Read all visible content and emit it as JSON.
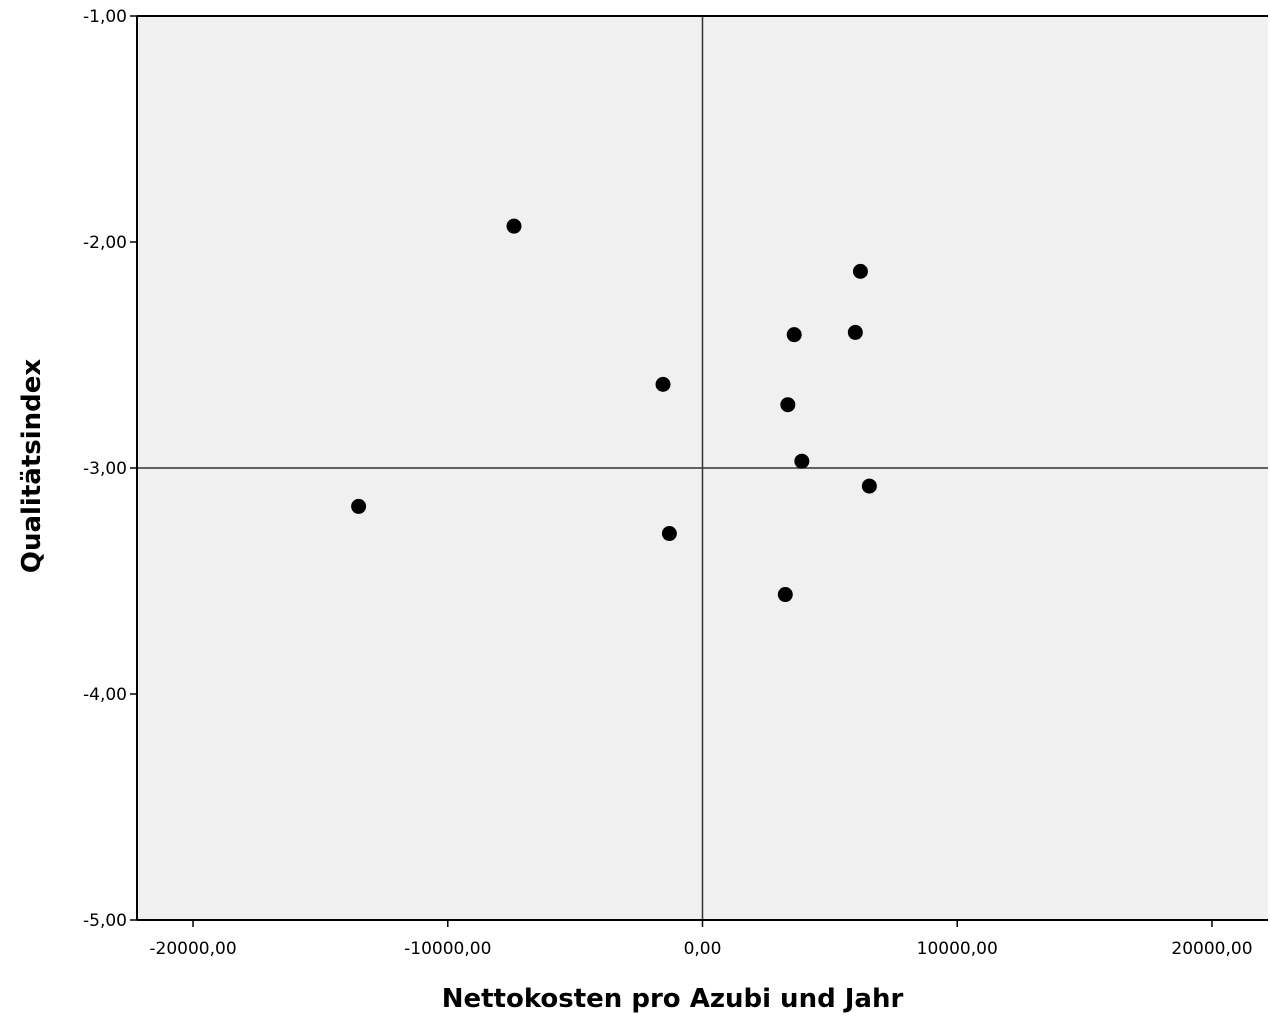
{
  "chart_data": {
    "type": "scatter",
    "title": "",
    "xlabel": "Nettokosten pro Azubi und Jahr",
    "ylabel": "Qualitätsindex",
    "xlim": [
      -22200,
      22200
    ],
    "ylim": [
      -5.0,
      -1.0
    ],
    "x_ticks": [
      {
        "value": -20000,
        "label": "-20000,00"
      },
      {
        "value": -10000,
        "label": "-10000,00"
      },
      {
        "value": 0,
        "label": "0,00"
      },
      {
        "value": 10000,
        "label": "10000,00"
      },
      {
        "value": 20000,
        "label": "20000,00"
      }
    ],
    "y_ticks": [
      {
        "value": -1,
        "label": "-1,00"
      },
      {
        "value": -2,
        "label": "-2,00"
      },
      {
        "value": -3,
        "label": "-3,00"
      },
      {
        "value": -4,
        "label": "-4,00"
      },
      {
        "value": -5,
        "label": "-5,00"
      }
    ],
    "reference_lines": {
      "x": 0,
      "y": -3.0
    },
    "grid": false,
    "legend": "none",
    "colors": {
      "plot_background": "#f0f0f0",
      "point": "#000000",
      "axis": "#000000"
    },
    "series": [
      {
        "points": [
          {
            "x": -7400,
            "y": -1.93
          },
          {
            "x": -13500,
            "y": -3.17
          },
          {
            "x": -1550,
            "y": -2.63
          },
          {
            "x": -1300,
            "y": -3.29
          },
          {
            "x": 6200,
            "y": -2.13
          },
          {
            "x": 3600,
            "y": -2.41
          },
          {
            "x": 6000,
            "y": -2.4
          },
          {
            "x": 3350,
            "y": -2.72
          },
          {
            "x": 3900,
            "y": -2.97
          },
          {
            "x": 6550,
            "y": -3.08
          },
          {
            "x": 3250,
            "y": -3.56
          }
        ]
      }
    ]
  }
}
